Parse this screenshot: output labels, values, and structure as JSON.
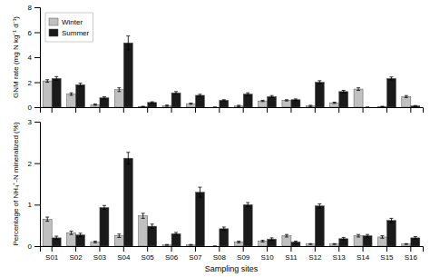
{
  "chart_data": [
    {
      "type": "bar",
      "categories": [
        "S01",
        "S02",
        "S03",
        "S04",
        "S05",
        "S06",
        "S07",
        "S08",
        "S09",
        "S10",
        "S11",
        "S12",
        "S13",
        "S14",
        "S15",
        "S16"
      ],
      "series": [
        {
          "name": "Winter",
          "color": "#c0c0c0",
          "values": [
            2.1,
            1.05,
            0.2,
            1.4,
            0.05,
            0.12,
            0.28,
            0.0,
            0.1,
            0.5,
            0.55,
            0.1,
            0.35,
            1.45,
            0.05,
            0.85
          ],
          "errors": [
            0.1,
            0.1,
            0.05,
            0.15,
            0.02,
            0.05,
            0.05,
            0.0,
            0.05,
            0.05,
            0.05,
            0.05,
            0.05,
            0.1,
            0.02,
            0.08
          ]
        },
        {
          "name": "Summer",
          "color": "#1a1a1a",
          "values": [
            2.3,
            1.8,
            0.75,
            5.15,
            0.38,
            1.15,
            0.95,
            0.55,
            1.05,
            0.85,
            0.6,
            2.0,
            1.25,
            0.0,
            2.3,
            0.1
          ],
          "errors": [
            0.15,
            0.12,
            0.08,
            0.55,
            0.05,
            0.1,
            0.08,
            0.05,
            0.1,
            0.08,
            0.06,
            0.12,
            0.1,
            0.0,
            0.12,
            0.03
          ]
        }
      ],
      "ylabel": "GNM rate (mg N kg⁻¹ d⁻¹)",
      "ylim": [
        0,
        8
      ],
      "yticks": [
        0,
        2,
        4,
        6,
        8
      ],
      "legend": "upper left",
      "tick_labels": "y"
    },
    {
      "type": "bar",
      "categories": [
        "S01",
        "S02",
        "S03",
        "S04",
        "S05",
        "S06",
        "S07",
        "S08",
        "S09",
        "S10",
        "S11",
        "S12",
        "S13",
        "S14",
        "S15",
        "S16"
      ],
      "series": [
        {
          "color": "#c0c0c0",
          "values": [
            0.65,
            0.32,
            0.1,
            0.25,
            0.73,
            0.03,
            0.03,
            0.0,
            0.1,
            0.12,
            0.25,
            0.05,
            0.05,
            0.25,
            0.22,
            0.05
          ],
          "errors": [
            0.05,
            0.04,
            0.02,
            0.04,
            0.06,
            0.01,
            0.01,
            0.0,
            0.02,
            0.02,
            0.03,
            0.01,
            0.01,
            0.03,
            0.03,
            0.01
          ]
        },
        {
          "color": "#1a1a1a",
          "values": [
            0.2,
            0.27,
            0.93,
            2.12,
            0.48,
            0.3,
            1.3,
            0.42,
            1.0,
            0.17,
            0.1,
            0.97,
            0.18,
            0.25,
            0.62,
            0.2
          ],
          "errors": [
            0.04,
            0.04,
            0.05,
            0.14,
            0.05,
            0.03,
            0.12,
            0.04,
            0.05,
            0.03,
            0.02,
            0.05,
            0.03,
            0.03,
            0.05,
            0.03
          ]
        }
      ],
      "xlabel": "Sampling sites",
      "ylabel": "Percentage of NH₄⁺-N mineralized (%)",
      "ylim": [
        0,
        3
      ],
      "yticks": [
        0,
        1,
        2,
        3
      ]
    }
  ]
}
